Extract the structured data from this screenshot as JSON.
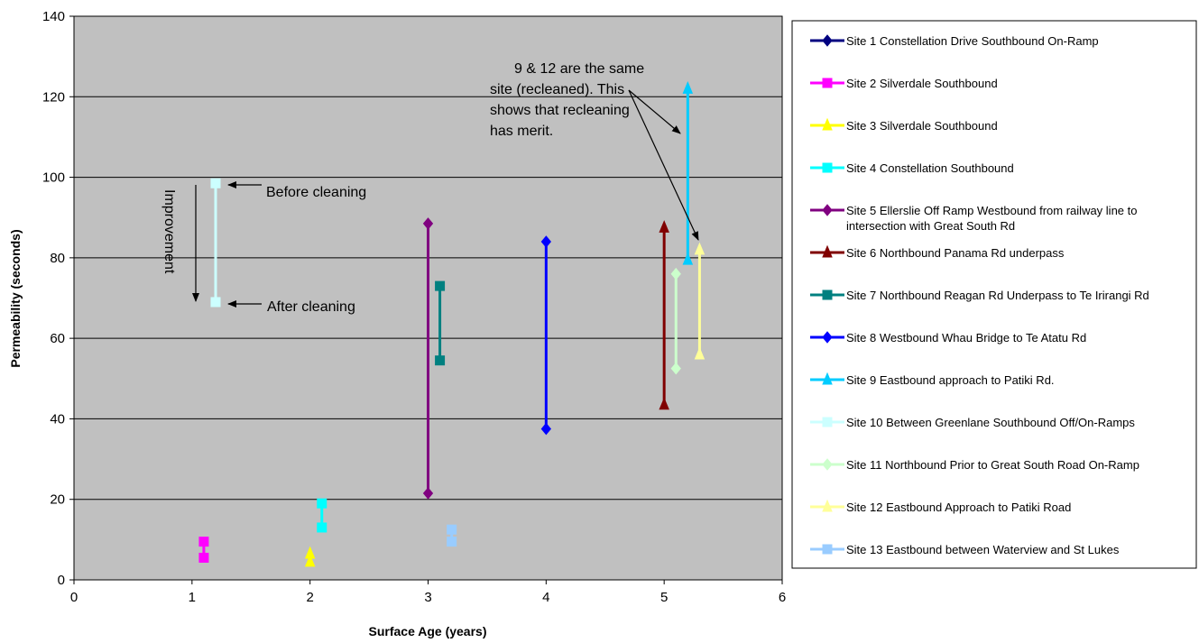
{
  "chart_data": {
    "type": "scatter",
    "xlabel": "Surface Age (years)",
    "ylabel": "Permeability (seconds)",
    "xlim": [
      0,
      6
    ],
    "ylim": [
      0,
      140
    ],
    "x_ticks": [
      0,
      1,
      2,
      3,
      4,
      5,
      6
    ],
    "y_ticks": [
      0,
      20,
      40,
      60,
      80,
      100,
      120,
      140
    ],
    "grid": "horizontal major gridlines",
    "plot_background": "#C0C0C0",
    "legend_position": "right",
    "series": [
      {
        "name": "Site 1 Constellation Drive Southbound On-Ramp",
        "color": "#000080",
        "marker": "diamond",
        "points": []
      },
      {
        "name": "Site 2 Silverdale Southbound",
        "color": "#FF00FF",
        "marker": "square",
        "points": [
          [
            1.1,
            9.5
          ],
          [
            1.1,
            5.5
          ]
        ]
      },
      {
        "name": "Site 3 Silverdale Southbound",
        "color": "#FFFF00",
        "marker": "triangle",
        "points": [
          [
            2.0,
            6.5
          ],
          [
            2.0,
            4.5
          ]
        ]
      },
      {
        "name": "Site 4 Constellation Southbound",
        "color": "#00FFFF",
        "marker": "square",
        "points": [
          [
            2.1,
            19
          ],
          [
            2.1,
            13
          ]
        ]
      },
      {
        "name": "Site 5 Ellerslie Off Ramp Westbound from railway line to intersection with Great South Rd",
        "color": "#800080",
        "marker": "diamond",
        "points": [
          [
            3.0,
            88.5
          ],
          [
            3.0,
            21.5
          ]
        ]
      },
      {
        "name": "Site 6 Northbound Panama Rd underpass",
        "color": "#800000",
        "marker": "triangle",
        "points": [
          [
            5.0,
            87.5
          ],
          [
            5.0,
            43.5
          ]
        ]
      },
      {
        "name": "Site 7 Northbound Reagan Rd Underpass to Te Irirangi Rd",
        "color": "#008080",
        "marker": "square",
        "points": [
          [
            3.1,
            73
          ],
          [
            3.1,
            54.5
          ]
        ]
      },
      {
        "name": "Site 8 Westbound Whau Bridge to Te Atatu Rd",
        "color": "#0000FF",
        "marker": "diamond",
        "points": [
          [
            4.0,
            84
          ],
          [
            4.0,
            37.5
          ]
        ]
      },
      {
        "name": "Site 9 Eastbound approach to Patiki Rd.",
        "color": "#00CCFF",
        "marker": "triangle",
        "points": [
          [
            5.2,
            122
          ],
          [
            5.2,
            79.5
          ]
        ]
      },
      {
        "name": "Site 10 Between Greenlane Southbound Off/On-Ramps",
        "color": "#CCFFFF",
        "marker": "square",
        "points": [
          [
            1.2,
            98.5
          ],
          [
            1.2,
            69
          ]
        ]
      },
      {
        "name": "Site 11 Northbound Prior to Great South Road On-Ramp",
        "color": "#CCFFCC",
        "marker": "diamond",
        "points": [
          [
            5.1,
            76
          ],
          [
            5.1,
            52.5
          ]
        ]
      },
      {
        "name": "Site 12 Eastbound Approach to Patiki Road",
        "color": "#FFFF99",
        "marker": "triangle",
        "points": [
          [
            5.3,
            82
          ],
          [
            5.3,
            56
          ]
        ]
      },
      {
        "name": "Site 13 Eastbound between Waterview and St Lukes",
        "color": "#99CCFF",
        "marker": "square",
        "points": [
          [
            3.2,
            12.5
          ],
          [
            3.2,
            9.5
          ]
        ]
      }
    ],
    "annotations": {
      "improvement": "Improvement",
      "before_cleaning": "Before cleaning",
      "after_cleaning": "After cleaning",
      "recleaned_note": [
        "9 & 12 are the same",
        "site (recleaned).  This",
        "shows that recleaning",
        "has merit."
      ]
    }
  }
}
